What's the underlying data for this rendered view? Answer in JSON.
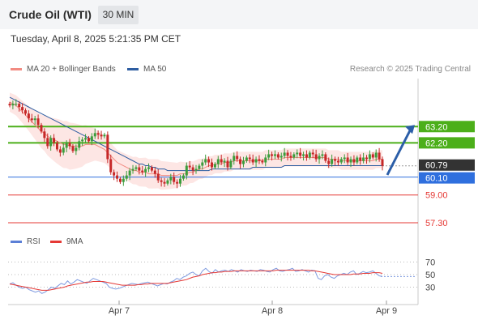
{
  "header": {
    "title": "Crude Oil (WTI)",
    "timeframe": "30 MIN"
  },
  "datetime": "Tuesday, April 8, 2025 5:21:35 PM CET",
  "legend": {
    "items": [
      {
        "label": "MA 20 + Bollinger Bands",
        "color": "#f28b82"
      },
      {
        "label": "MA 50",
        "color": "#2d5da1"
      }
    ],
    "source": "Research © 2025 Trading Central"
  },
  "colors": {
    "up": "#3c9c3c",
    "down": "#c62828",
    "green_level": "#4caf1a",
    "blue_level": "#2f6fde",
    "red_level": "#e53935",
    "arrow": "#2b5ea8",
    "band": "#fde3e1"
  },
  "chart_data": [
    {
      "type": "line",
      "title": "Crude Oil (WTI)",
      "y_levels": [
        {
          "value": 63.2,
          "label": "63.20",
          "kind": "resistance",
          "color": "#4caf1a"
        },
        {
          "value": 62.2,
          "label": "62.20",
          "kind": "resistance",
          "color": "#4caf1a"
        },
        {
          "value": 60.79,
          "label": "60.79",
          "kind": "last-price",
          "color": "#333333"
        },
        {
          "value": 60.1,
          "label": "60.10",
          "kind": "pivot",
          "color": "#2f6fde"
        },
        {
          "value": 59.0,
          "label": "59.00",
          "kind": "support",
          "color": "#e53935"
        },
        {
          "value": 57.3,
          "label": "57.30",
          "kind": "support",
          "color": "#e53935"
        }
      ],
      "x_ticks": [
        "Apr 7",
        "Apr 8",
        "Apr 9"
      ],
      "ylim": [
        56.8,
        65.5
      ],
      "series": [
        {
          "name": "Price (close)",
          "values": [
            64.5,
            64.6,
            64.6,
            64.4,
            64.2,
            64.0,
            63.7,
            63.6,
            63.7,
            63.3,
            62.9,
            62.5,
            62.0,
            62.5,
            62.2,
            61.8,
            61.6,
            61.9,
            62.2,
            62.0,
            61.7,
            61.9,
            62.3,
            62.4,
            62.5,
            62.3,
            62.6,
            62.8,
            62.7,
            62.6,
            62.7,
            61.2,
            60.4,
            60.2,
            60.0,
            59.8,
            60.0,
            60.2,
            60.5,
            60.6,
            60.7,
            60.5,
            60.4,
            60.6,
            60.7,
            60.5,
            60.3,
            59.9,
            59.8,
            59.7,
            59.9,
            60.1,
            59.8,
            59.7,
            60.0,
            60.2,
            60.8,
            60.7,
            60.5,
            60.6,
            60.8,
            61.0,
            61.2,
            61.0,
            60.7,
            60.9,
            61.2,
            61.0,
            61.1,
            60.7,
            61.1,
            61.4,
            61.2,
            60.9,
            61.1,
            61.3,
            61.2,
            61.0,
            61.2,
            61.1,
            61.0,
            61.3,
            61.5,
            61.4,
            61.5,
            61.3,
            61.4,
            61.6,
            61.4,
            61.3,
            61.5,
            61.6,
            61.4,
            61.5,
            61.3,
            61.6,
            61.5,
            61.2,
            61.4,
            61.5,
            61.1,
            60.9,
            61.2,
            61.1,
            61.0,
            61.2,
            61.3,
            61.0,
            61.2,
            61.0,
            61.3,
            61.1,
            61.3,
            61.2,
            61.5,
            61.3,
            61.6,
            61.2,
            60.79
          ]
        },
        {
          "name": "MA 20",
          "values": [
            64.7,
            64.6,
            64.5,
            64.3,
            64.1,
            63.9,
            63.7,
            63.5,
            63.3,
            63.1,
            62.9,
            62.8,
            62.6,
            62.5,
            62.4,
            62.3,
            62.2,
            62.1,
            62.1,
            62.0,
            62.0,
            62.0,
            62.0,
            62.0,
            62.1,
            62.1,
            62.1,
            62.1,
            62.0,
            61.9,
            61.8,
            61.6,
            61.4,
            61.2,
            61.0,
            60.9,
            60.8,
            60.7,
            60.6,
            60.5,
            60.5,
            60.4,
            60.4,
            60.4,
            60.3,
            60.3,
            60.3,
            60.3,
            60.2,
            60.2,
            60.2,
            60.2,
            60.2,
            60.2,
            60.3,
            60.3,
            60.3,
            60.4,
            60.4,
            60.5,
            60.6,
            60.6,
            60.7,
            60.8,
            60.8,
            60.9,
            60.9,
            60.9,
            61.0,
            61.0,
            61.0,
            61.1,
            61.1,
            61.1,
            61.1,
            61.1,
            61.1,
            61.1,
            61.1,
            61.1,
            61.1,
            61.2,
            61.2,
            61.2,
            61.2,
            61.2,
            61.2,
            61.3,
            61.3,
            61.3,
            61.3,
            61.3,
            61.3,
            61.3,
            61.3,
            61.3,
            61.3,
            61.3,
            61.3,
            61.3,
            61.3,
            61.2,
            61.2,
            61.2,
            61.2,
            61.1,
            61.1,
            61.1,
            61.1,
            61.1,
            61.1,
            61.1,
            61.1,
            61.1,
            61.1,
            61.1,
            61.2,
            61.2,
            61.2
          ]
        },
        {
          "name": "MA 50",
          "values": [
            65.0,
            64.9,
            64.8,
            64.7,
            64.6,
            64.5,
            64.4,
            64.3,
            64.2,
            64.1,
            64.0,
            63.9,
            63.8,
            63.7,
            63.6,
            63.5,
            63.4,
            63.3,
            63.2,
            63.1,
            63.0,
            62.9,
            62.8,
            62.7,
            62.6,
            62.5,
            62.4,
            62.3,
            62.2,
            62.1,
            62.0,
            61.9,
            61.8,
            61.7,
            61.6,
            61.5,
            61.4,
            61.3,
            61.2,
            61.1,
            61.0,
            60.9,
            60.9,
            60.8,
            60.8,
            60.7,
            60.7,
            60.6,
            60.6,
            60.6,
            60.5,
            60.5,
            60.5,
            60.5,
            60.5,
            60.5,
            60.5,
            60.5,
            60.5,
            60.5,
            60.5,
            60.5,
            60.5,
            60.5,
            60.6,
            60.6,
            60.6,
            60.6,
            60.6,
            60.6,
            60.6,
            60.6,
            60.6,
            60.6,
            60.6,
            60.6,
            60.6,
            60.7,
            60.7,
            60.7,
            60.7,
            60.7,
            60.7,
            60.7,
            60.7,
            60.7,
            60.7,
            60.8,
            60.8,
            60.8,
            60.8,
            60.8,
            60.8,
            60.8,
            60.8,
            60.8,
            60.8,
            60.8,
            60.8,
            60.8,
            60.8,
            60.8,
            60.8,
            60.8,
            60.8,
            60.8,
            60.8,
            60.8,
            60.8,
            60.8,
            60.8,
            60.8,
            60.8,
            60.8,
            60.8,
            60.8,
            60.8,
            60.8,
            60.8
          ]
        }
      ]
    },
    {
      "type": "line",
      "title": "RSI",
      "y_ticks": [
        70,
        50,
        30
      ],
      "ylim": [
        10,
        90
      ],
      "series": [
        {
          "name": "RSI",
          "values": [
            35,
            37,
            33,
            30,
            28,
            30,
            26,
            24,
            22,
            24,
            20,
            22,
            26,
            30,
            28,
            32,
            36,
            34,
            40,
            35,
            38,
            42,
            40,
            38,
            36,
            40,
            44,
            42,
            40,
            38,
            36,
            30,
            28,
            27,
            28,
            30,
            32,
            34,
            36,
            35,
            34,
            36,
            37,
            38,
            36,
            34,
            32,
            34,
            36,
            35,
            38,
            40,
            44,
            42,
            46,
            48,
            52,
            54,
            50,
            48,
            56,
            60,
            55,
            52,
            58,
            54,
            56,
            57,
            55,
            58,
            56,
            54,
            58,
            56,
            55,
            57,
            56,
            55,
            58,
            57,
            55,
            54,
            58,
            60,
            56,
            55,
            57,
            58,
            60,
            55,
            56,
            58,
            56,
            54,
            57,
            56,
            44,
            42,
            48,
            50,
            46,
            44,
            48,
            50,
            52,
            50,
            54,
            56,
            50,
            52,
            55,
            53,
            54,
            56,
            52,
            48,
            47
          ]
        },
        {
          "name": "9MA",
          "values": [
            35,
            34,
            33,
            32,
            31,
            30,
            29,
            28,
            27,
            26,
            25,
            25,
            25,
            26,
            27,
            28,
            29,
            30,
            32,
            33,
            34,
            35,
            36,
            37,
            38,
            38,
            39,
            39,
            39,
            39,
            38,
            37,
            36,
            35,
            34,
            33,
            33,
            33,
            33,
            33,
            34,
            34,
            35,
            35,
            36,
            36,
            36,
            36,
            36,
            36,
            37,
            38,
            39,
            40,
            41,
            42,
            44,
            46,
            47,
            48,
            50,
            51,
            52,
            53,
            53,
            54,
            54,
            55,
            55,
            55,
            56,
            56,
            56,
            56,
            56,
            56,
            56,
            56,
            56,
            56,
            56,
            56,
            56,
            57,
            57,
            57,
            57,
            57,
            57,
            57,
            57,
            57,
            57,
            57,
            56,
            56,
            55,
            54,
            53,
            52,
            51,
            50,
            50,
            50,
            50,
            50,
            50,
            51,
            51,
            51,
            52,
            52,
            52,
            53,
            53,
            53,
            52
          ]
        }
      ]
    }
  ],
  "rsi_legend": [
    {
      "label": "RSI",
      "color": "#5b7fd6"
    },
    {
      "label": "9MA",
      "color": "#e53935"
    }
  ]
}
